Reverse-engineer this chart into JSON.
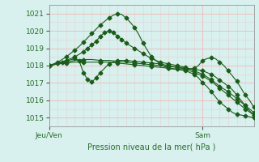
{
  "xlabel": "Pression niveau de la mer( hPa )",
  "ylim": [
    1014.5,
    1021.5
  ],
  "xlim": [
    0,
    48
  ],
  "yticks": [
    1015,
    1016,
    1017,
    1018,
    1019,
    1020,
    1021
  ],
  "xtick_positions": [
    0,
    36
  ],
  "xtick_labels": [
    "Jeu/Ven",
    "Sam"
  ],
  "bg_color": "#d8f0ee",
  "plot_bg": "#d8f0ee",
  "grid_color_major": "#f0b8b8",
  "grid_color_minor": "#e8d0d0",
  "line_color": "#1a5c1a",
  "series": [
    {
      "x": [
        0,
        1,
        2,
        3,
        4,
        5,
        6,
        7,
        8,
        9,
        10,
        11,
        12,
        13,
        14,
        15,
        16,
        17,
        18,
        19,
        20,
        21,
        22,
        23,
        24,
        25,
        26,
        27,
        28,
        29,
        30,
        31,
        32,
        33,
        34,
        35,
        36,
        37,
        38,
        39,
        40,
        41,
        42,
        43,
        44,
        45,
        46,
        47,
        48
      ],
      "y": [
        1018.0,
        1018.1,
        1018.2,
        1018.35,
        1018.5,
        1018.7,
        1018.9,
        1019.1,
        1019.35,
        1019.6,
        1019.85,
        1020.1,
        1020.35,
        1020.55,
        1020.75,
        1020.9,
        1021.0,
        1020.95,
        1020.75,
        1020.5,
        1020.2,
        1019.8,
        1019.3,
        1018.9,
        1018.5,
        1018.3,
        1018.1,
        1017.95,
        1017.85,
        1017.8,
        1017.8,
        1017.75,
        1017.7,
        1017.6,
        1017.5,
        1017.3,
        1017.0,
        1016.8,
        1016.5,
        1016.2,
        1015.9,
        1015.7,
        1015.5,
        1015.3,
        1015.2,
        1015.15,
        1015.1,
        1015.05,
        1015.0
      ],
      "marker": "D",
      "markersize": 2.5,
      "every": 2
    },
    {
      "x": [
        0,
        2,
        4,
        6,
        8,
        9,
        10,
        11,
        12,
        13,
        14,
        15,
        16,
        17,
        18,
        20,
        22,
        24,
        26,
        28,
        30,
        32,
        34,
        36,
        38,
        40,
        42,
        44,
        46,
        48
      ],
      "y": [
        1018.0,
        1018.15,
        1018.3,
        1018.5,
        1018.8,
        1019.0,
        1019.2,
        1019.4,
        1019.7,
        1019.9,
        1020.0,
        1019.9,
        1019.7,
        1019.5,
        1019.3,
        1019.0,
        1018.7,
        1018.4,
        1018.2,
        1018.1,
        1018.0,
        1017.9,
        1017.7,
        1017.5,
        1017.2,
        1016.8,
        1016.5,
        1016.1,
        1015.7,
        1015.3
      ],
      "marker": "D",
      "markersize": 2.5,
      "every": 1
    },
    {
      "x": [
        0,
        3,
        6,
        7,
        8,
        9,
        10,
        11,
        12,
        14,
        16,
        18,
        20,
        22,
        24,
        26,
        28,
        30,
        32,
        34,
        36,
        38,
        40,
        42,
        44,
        46,
        48
      ],
      "y": [
        1018.0,
        1018.2,
        1018.4,
        1018.3,
        1017.6,
        1017.2,
        1017.05,
        1017.3,
        1017.6,
        1018.1,
        1018.3,
        1018.3,
        1018.25,
        1018.2,
        1018.15,
        1018.1,
        1018.0,
        1017.9,
        1017.8,
        1017.6,
        1017.4,
        1017.1,
        1016.7,
        1016.3,
        1015.9,
        1015.5,
        1015.15
      ],
      "marker": "D",
      "markersize": 2.5,
      "every": 1
    },
    {
      "x": [
        0,
        2,
        4,
        6,
        8,
        10,
        12,
        14,
        16,
        18,
        20,
        22,
        24,
        26,
        28,
        30,
        32,
        34,
        36,
        37,
        38,
        39,
        40,
        41,
        42,
        43,
        44,
        45,
        46,
        47,
        48
      ],
      "y": [
        1018.0,
        1018.1,
        1018.2,
        1018.3,
        1018.35,
        1018.35,
        1018.3,
        1018.3,
        1018.25,
        1018.2,
        1018.15,
        1018.1,
        1018.05,
        1018.0,
        1017.95,
        1017.9,
        1017.85,
        1017.8,
        1017.7,
        1017.6,
        1017.5,
        1017.35,
        1017.15,
        1017.0,
        1016.8,
        1016.6,
        1016.3,
        1016.0,
        1015.7,
        1015.4,
        1015.15
      ],
      "marker": "D",
      "markersize": 2.5,
      "every": 2
    },
    {
      "x": [
        0,
        2,
        4,
        6,
        8,
        10,
        12,
        14,
        16,
        18,
        20,
        22,
        24,
        26,
        28,
        30,
        32,
        33,
        34,
        35,
        36,
        37,
        38,
        39,
        40,
        41,
        42,
        43,
        44,
        45,
        46,
        47,
        48
      ],
      "y": [
        1018.0,
        1018.1,
        1018.15,
        1018.2,
        1018.2,
        1018.2,
        1018.2,
        1018.2,
        1018.15,
        1018.1,
        1018.05,
        1018.0,
        1017.95,
        1017.9,
        1017.85,
        1017.8,
        1017.75,
        1017.8,
        1017.85,
        1018.0,
        1018.3,
        1018.4,
        1018.45,
        1018.4,
        1018.2,
        1018.0,
        1017.7,
        1017.4,
        1017.1,
        1016.7,
        1016.3,
        1016.0,
        1015.6
      ],
      "marker": "D",
      "markersize": 2.5,
      "every": 2
    }
  ]
}
